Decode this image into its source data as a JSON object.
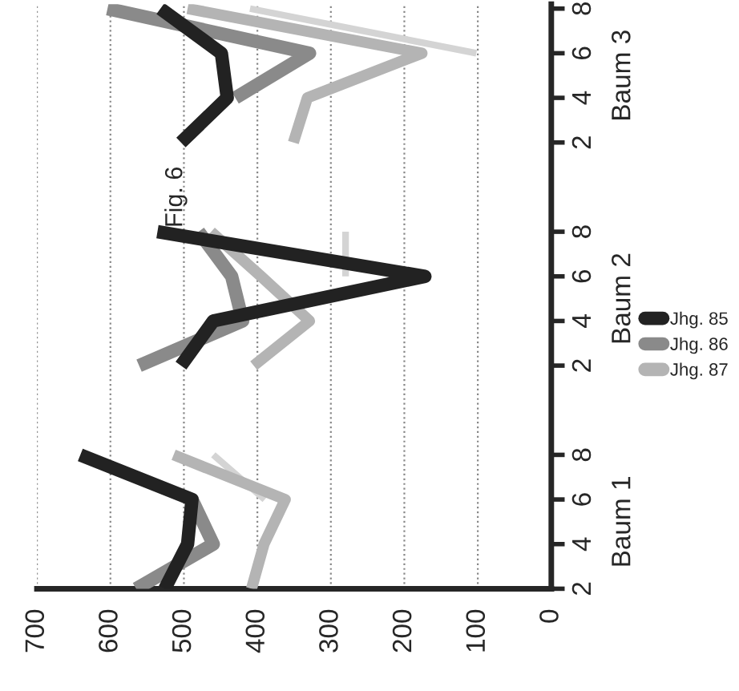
{
  "chart_data": {
    "type": "line",
    "orientation": "horizontal",
    "categories": [
      "8",
      "6",
      "4",
      "2",
      null,
      "8",
      "6",
      "4",
      "2",
      null,
      "8",
      "6",
      "4",
      "2"
    ],
    "series": [
      {
        "name": "Jhg. 85",
        "color": "#222222",
        "values": [
          532,
          449,
          441,
          504,
          null,
          536,
          172,
          460,
          504,
          null,
          641,
          489,
          495,
          526
        ]
      },
      {
        "name": "Jhg. 86",
        "color": "#8a8a8a",
        "values": [
          604,
          329,
          430,
          null,
          null,
          480,
          435,
          420,
          561,
          null,
          null,
          489,
          460,
          565
        ]
      },
      {
        "name": "Jhg. 87",
        "color": "#b4b4b4",
        "values": [
          495,
          176,
          332,
          351,
          null,
          463,
          395,
          329,
          405,
          null,
          514,
          362,
          391,
          408
        ]
      },
      {
        "color": "#d4d4d4",
        "values": [
          410,
          102,
          null,
          null,
          null,
          280,
          280,
          null,
          null,
          null,
          460,
          390,
          null,
          null
        ]
      }
    ],
    "xlim": [
      700,
      0
    ],
    "xticks": [
      0,
      100,
      200,
      300,
      400,
      500,
      600,
      700
    ],
    "grid": "x",
    "legend": "right",
    "marker": "none",
    "line_style": "solid",
    "annotations": [
      "Fig. 6",
      "Baum 3",
      "Baum 2",
      "Baum 1"
    ]
  }
}
